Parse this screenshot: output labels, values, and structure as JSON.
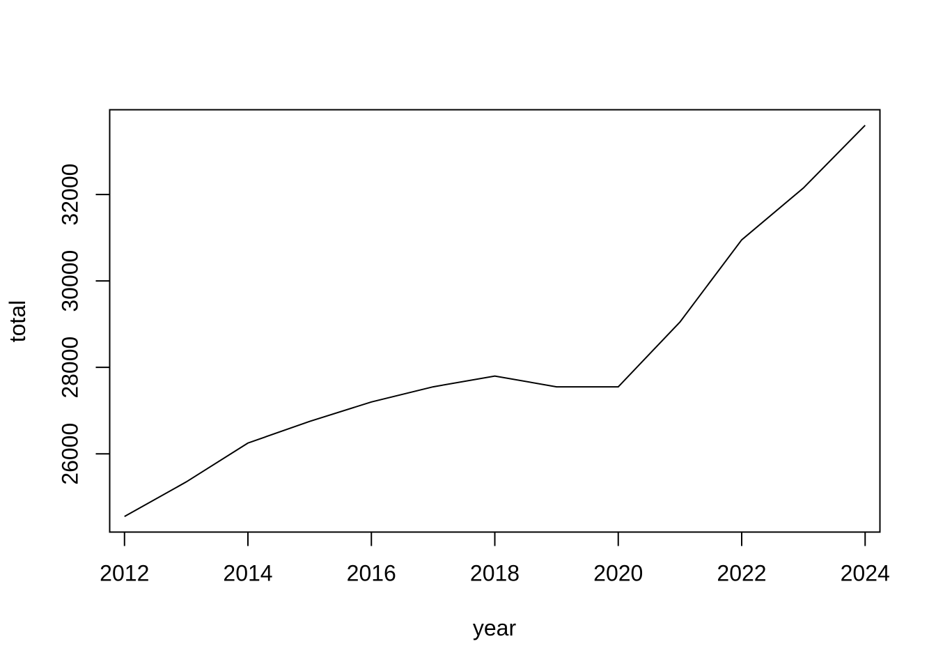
{
  "chart_data": {
    "type": "line",
    "title": "",
    "xlabel": "year",
    "ylabel": "total",
    "x": [
      2012,
      2013,
      2014,
      2015,
      2016,
      2017,
      2018,
      2019,
      2020,
      2021,
      2022,
      2023,
      2024
    ],
    "series": [
      {
        "values": [
          24550,
          25350,
          26250,
          26750,
          27200,
          27550,
          27800,
          27550,
          27550,
          29050,
          30950,
          32150,
          33600
        ]
      }
    ],
    "xticks": [
      "2012",
      "2014",
      "2016",
      "2018",
      "2020",
      "2022",
      "2024"
    ],
    "yticks": [
      "26000",
      "28000",
      "30000",
      "32000"
    ],
    "xlim": [
      2011.76,
      2024.24
    ],
    "ylim": [
      24190,
      33960
    ],
    "grid": false,
    "legend": "none",
    "colors": {
      "line": "#000000",
      "background": "#ffffff"
    }
  }
}
